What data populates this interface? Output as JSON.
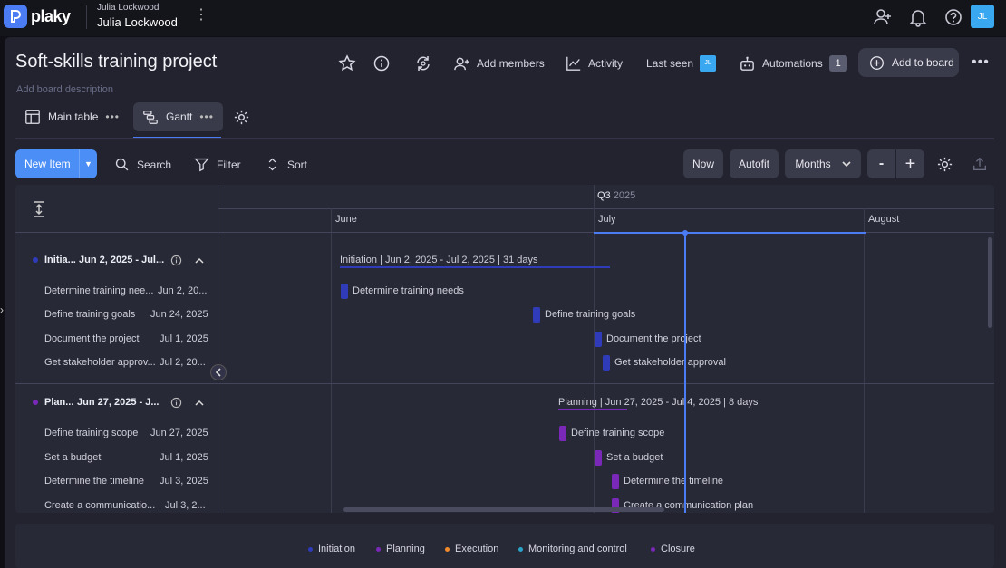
{
  "app": {
    "logo_text": "plaky",
    "workspace_small": "Julia Lockwood",
    "workspace_name": "Julia Lockwood",
    "avatar": "JL"
  },
  "board": {
    "title": "Soft-skills training project",
    "description_placeholder": "Add board description",
    "add_members": "Add members",
    "activity": "Activity",
    "last_seen": "Last seen",
    "last_seen_avatar": "JL",
    "automations": "Automations",
    "automations_count": "1",
    "add_to_board": "Add to board"
  },
  "tabs": [
    {
      "label": "Main table"
    },
    {
      "label": "Gantt"
    }
  ],
  "toolbar": {
    "new_item": "New Item",
    "search": "Search",
    "filter": "Filter",
    "sort": "Sort",
    "now": "Now",
    "autofit": "Autofit",
    "scale": "Months",
    "zoom_out": "-",
    "zoom_in": "+"
  },
  "timeline": {
    "quarter": "Q3",
    "year": "2025",
    "months": [
      "June",
      "July",
      "August"
    ]
  },
  "groups": [
    {
      "name": "Initia...",
      "range": "Jun 2, 2025 - Jul...",
      "color": "#2f3bb8",
      "summary": "Initiation | Jun 2, 2025 - Jul 2, 2025 | 31 days",
      "items": [
        {
          "name": "Determine training nee...",
          "date": "Jun 2, 20...",
          "bar_label": "Determine training needs"
        },
        {
          "name": "Define training goals",
          "date": "Jun 24, 2025",
          "bar_label": "Define training goals"
        },
        {
          "name": "Document the project",
          "date": "Jul 1, 2025",
          "bar_label": "Document the project"
        },
        {
          "name": "Get stakeholder approv...",
          "date": "Jul 2, 20...",
          "bar_label": "Get stakeholder approval"
        }
      ]
    },
    {
      "name": "Plan...",
      "range": "Jun 27, 2025 - J...",
      "color": "#7a28b8",
      "summary": "Planning | Jun 27, 2025 - Jul 4, 2025 | 8 days",
      "items": [
        {
          "name": "Define training scope",
          "date": "Jun 27, 2025",
          "bar_label": "Define training scope"
        },
        {
          "name": "Set a budget",
          "date": "Jul 1, 2025",
          "bar_label": "Set a budget"
        },
        {
          "name": "Determine the timeline",
          "date": "Jul 3, 2025",
          "bar_label": "Determine the timeline"
        },
        {
          "name": "Create a communicatio...",
          "date": "Jul 3, 2...",
          "bar_label": "Create a communication plan"
        }
      ]
    }
  ],
  "legend": [
    {
      "label": "Initiation",
      "color": "#2f3bb8"
    },
    {
      "label": "Planning",
      "color": "#7a28b8"
    },
    {
      "label": "Execution",
      "color": "#f08a2a"
    },
    {
      "label": "Monitoring and control",
      "color": "#2ba3c9"
    },
    {
      "label": "Closure",
      "color": "#7a28b8"
    }
  ]
}
